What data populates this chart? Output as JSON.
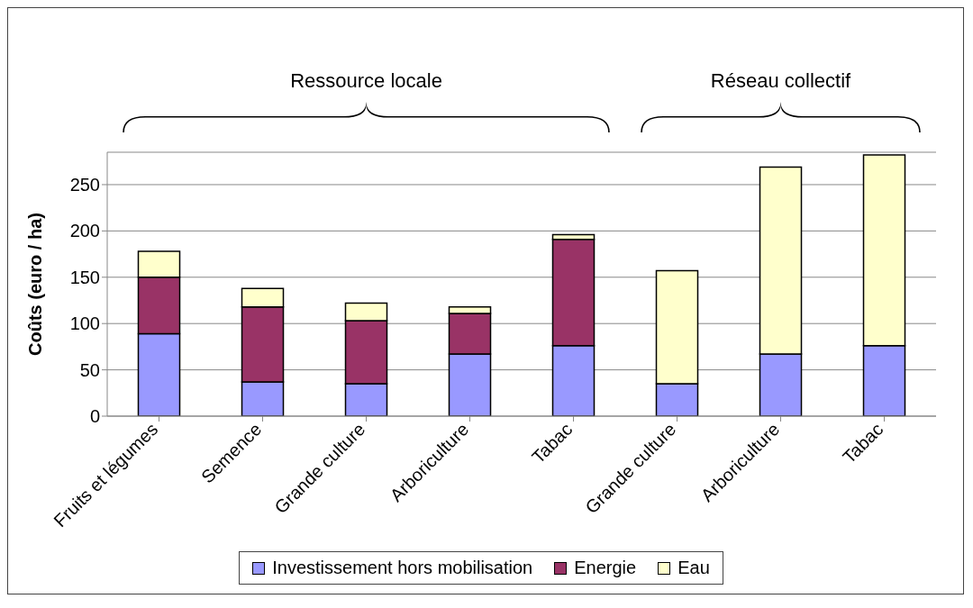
{
  "chart_data": {
    "type": "bar",
    "stacked": true,
    "ylabel": "Coûts (euro / ha)",
    "annotations": [
      "Ressource locale",
      "Réseau collectif"
    ],
    "categories": [
      "Fruits et légumes",
      "Semence",
      "Grande culture",
      "Arboriculture",
      "Tabac",
      "Grande culture",
      "Arboriculture",
      "Tabac"
    ],
    "series": [
      {
        "name": "Investissement hors mobilisation",
        "color": "#9999ff",
        "values": [
          89,
          37,
          35,
          67,
          76,
          35,
          67,
          76
        ]
      },
      {
        "name": "Energie",
        "color": "#993366",
        "values": [
          61,
          81,
          68,
          44,
          115,
          null,
          null,
          null
        ]
      },
      {
        "name": "Eau",
        "color": "#ffffcc",
        "values": [
          28,
          20,
          19,
          7,
          5,
          122,
          202,
          206
        ]
      }
    ],
    "ylim": [
      0,
      285
    ],
    "yticks": [
      0,
      50,
      100,
      150,
      200,
      250
    ],
    "grid": "y",
    "legend": "bottom"
  }
}
